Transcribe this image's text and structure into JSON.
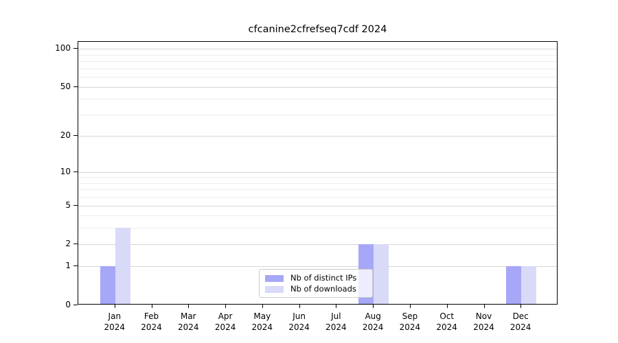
{
  "chart_data": {
    "type": "bar",
    "title": "cfcanine2cfrefseq7cdf 2024",
    "x": {
      "months": [
        "Jan",
        "Feb",
        "Mar",
        "Apr",
        "May",
        "Jun",
        "Jul",
        "Aug",
        "Sep",
        "Oct",
        "Nov",
        "Dec"
      ],
      "year": "2024"
    },
    "categories": [
      "Jan 2024",
      "Feb 2024",
      "Mar 2024",
      "Apr 2024",
      "May 2024",
      "Jun 2024",
      "Jul 2024",
      "Aug 2024",
      "Sep 2024",
      "Oct 2024",
      "Nov 2024",
      "Dec 2024"
    ],
    "series": [
      {
        "name": "Nb of distinct IPs",
        "color": "#a7a7f7",
        "values": [
          1,
          0,
          0,
          0,
          0,
          0,
          0,
          2,
          0,
          0,
          0,
          1
        ]
      },
      {
        "name": "Nb of downloads",
        "color": "#d9d9f8",
        "values": [
          3,
          0,
          0,
          0,
          0,
          0,
          0,
          2,
          0,
          0,
          0,
          1
        ]
      }
    ],
    "yscale": "log10(1+v)",
    "ylim": [
      0,
      113
    ],
    "yticks": [
      0,
      1,
      2,
      5,
      10,
      20,
      50,
      100
    ],
    "minor_grid_values": [
      3,
      4,
      6,
      7,
      8,
      9,
      30,
      40,
      60,
      70,
      80,
      90
    ],
    "grid": true,
    "legend_position": "lower center",
    "legend": {
      "items": [
        {
          "label": "Nb of distinct IPs",
          "color": "#a7a7f7"
        },
        {
          "label": "Nb of downloads",
          "color": "#d9d9f8"
        }
      ]
    },
    "colors": {
      "axis": "#000000",
      "grid_major": "#d6d6d6",
      "grid_minor": "#ececec",
      "legend_border": "#cccccc",
      "background": "#ffffff"
    }
  }
}
